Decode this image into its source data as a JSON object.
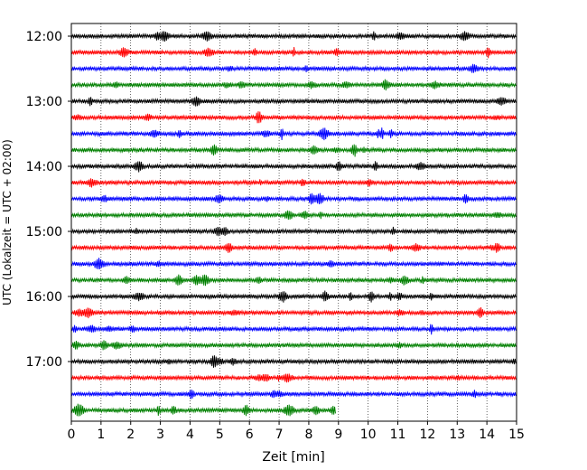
{
  "chart_data": {
    "type": "line",
    "xlabel": "Zeit  [min]",
    "ylabel": "UTC (Lokalzeit = UTC + 02:00)",
    "xlim": [
      0,
      15
    ],
    "x_ticks": [
      "0",
      "1",
      "2",
      "3",
      "4",
      "5",
      "6",
      "7",
      "8",
      "9",
      "10",
      "11",
      "12",
      "13",
      "14",
      "15"
    ],
    "y_ticks": [
      "12:00",
      "13:00",
      "14:00",
      "15:00",
      "16:00",
      "17:00"
    ],
    "grid": "vertical-dotted",
    "trace_colors": [
      "#000000",
      "#ff0000",
      "#0000ff",
      "#008000"
    ],
    "traces": [
      {
        "start": "12:00",
        "end_min": 15
      },
      {
        "start": "12:15",
        "end_min": 15
      },
      {
        "start": "12:30",
        "end_min": 15
      },
      {
        "start": "12:45",
        "end_min": 15
      },
      {
        "start": "13:00",
        "end_min": 15
      },
      {
        "start": "13:15",
        "end_min": 15
      },
      {
        "start": "13:30",
        "end_min": 15
      },
      {
        "start": "13:45",
        "end_min": 15
      },
      {
        "start": "14:00",
        "end_min": 15
      },
      {
        "start": "14:15",
        "end_min": 15
      },
      {
        "start": "14:30",
        "end_min": 15
      },
      {
        "start": "14:45",
        "end_min": 15
      },
      {
        "start": "15:00",
        "end_min": 15
      },
      {
        "start": "15:15",
        "end_min": 15
      },
      {
        "start": "15:30",
        "end_min": 15
      },
      {
        "start": "15:45",
        "end_min": 15
      },
      {
        "start": "16:00",
        "end_min": 15
      },
      {
        "start": "16:15",
        "end_min": 15
      },
      {
        "start": "16:30",
        "end_min": 15
      },
      {
        "start": "16:45",
        "end_min": 15
      },
      {
        "start": "17:00",
        "end_min": 15
      },
      {
        "start": "17:15",
        "end_min": 15
      },
      {
        "start": "17:30",
        "end_min": 15
      },
      {
        "start": "17:45",
        "end_min": 8.9
      }
    ]
  }
}
